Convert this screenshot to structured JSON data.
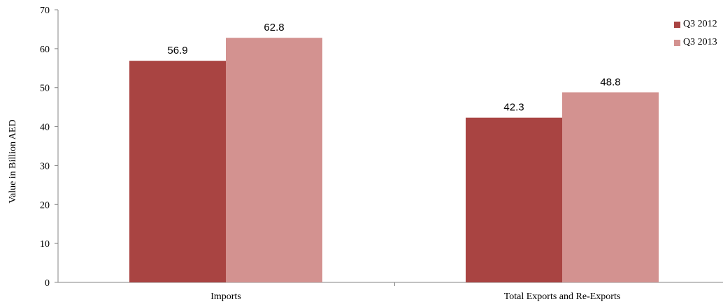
{
  "chart_data": {
    "type": "bar",
    "title": "",
    "xlabel": "",
    "ylabel": "Value in Billion AED",
    "ylim": [
      0,
      70
    ],
    "yticks": [
      0,
      10,
      20,
      30,
      40,
      50,
      60,
      70
    ],
    "categories": [
      "Imports",
      "Total Exports and Re-Exports"
    ],
    "series": [
      {
        "name": "Q3 2012",
        "values": [
          56.9,
          42.3
        ],
        "value_labels": [
          "56.9",
          "42.3"
        ],
        "color": "#a94442"
      },
      {
        "name": "Q3 2013",
        "values": [
          62.8,
          48.8
        ],
        "value_labels": [
          "62.8",
          "48.8"
        ],
        "color": "#d39290"
      }
    ],
    "grid": false,
    "legend_position": "top-right"
  }
}
